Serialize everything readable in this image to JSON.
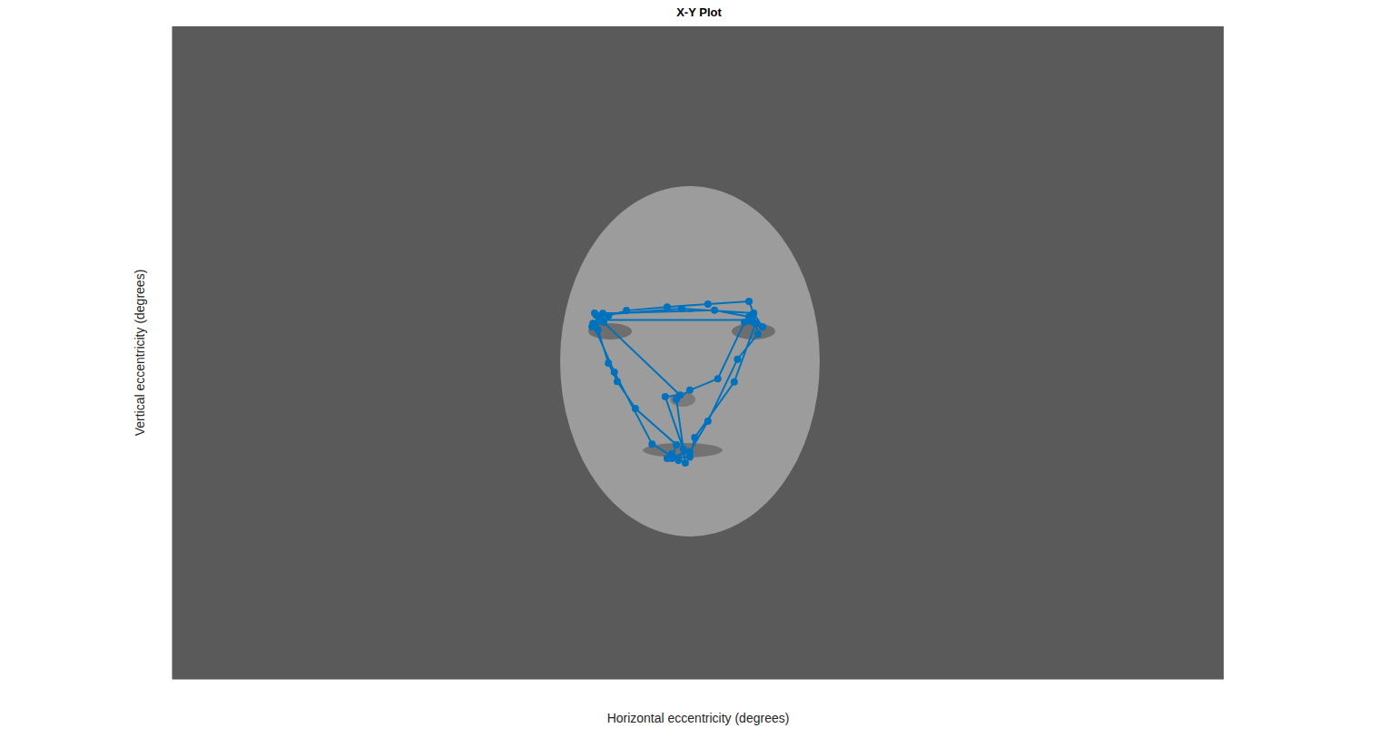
{
  "chart_data": {
    "type": "line",
    "title": "X-Y Plot",
    "x_label": "Horizontal eccentricity (degrees)",
    "y_label": "Vertical eccentricity (degrees)",
    "xlim": [
      -16,
      16
    ],
    "ylim": [
      -10,
      10
    ],
    "tick_labels": false,
    "grid": false,
    "color": "#0072bd",
    "marker": "o",
    "line_style": "solid",
    "x": [
      -3.01,
      -3.15,
      -2.87,
      -3.23,
      -2.73,
      -2.18,
      -0.94,
      0.3,
      1.55,
      1.69,
      1.96,
      1.41,
      0.6,
      -0.25,
      -0.66,
      -0.39,
      -0.8,
      -0.94,
      -0.25,
      0.3,
      1.2,
      1.82,
      1.69,
      -0.5,
      -3.1,
      -3.05,
      -2.73,
      -2.46,
      -1.91,
      -0.66,
      -0.8,
      -0.25,
      -0.1,
      1.1,
      1.75,
      1.55,
      0.5,
      -2.9,
      -3.2,
      -2.55,
      -1.4,
      -0.6,
      -0.45,
      -1.0,
      -0.55,
      -2.95,
      1.6
    ],
    "values": [
      1.07,
      1.21,
      0.93,
      0.79,
      1.13,
      1.29,
      1.4,
      1.49,
      1.57,
      1.21,
      0.79,
      0.93,
      -0.8,
      -1.15,
      -1.43,
      -3.38,
      -3.1,
      -3.24,
      -3.04,
      -2.1,
      -0.2,
      0.57,
      1.21,
      1.35,
      1.15,
      0.7,
      -0.32,
      -0.88,
      -1.71,
      -2.82,
      -3.24,
      -3.2,
      -2.6,
      -0.9,
      0.9,
      1.1,
      1.3,
      1.2,
      0.9,
      -0.6,
      -2.8,
      -3.3,
      -2.95,
      -1.35,
      -1.3,
      1.0,
      1.0
    ]
  }
}
